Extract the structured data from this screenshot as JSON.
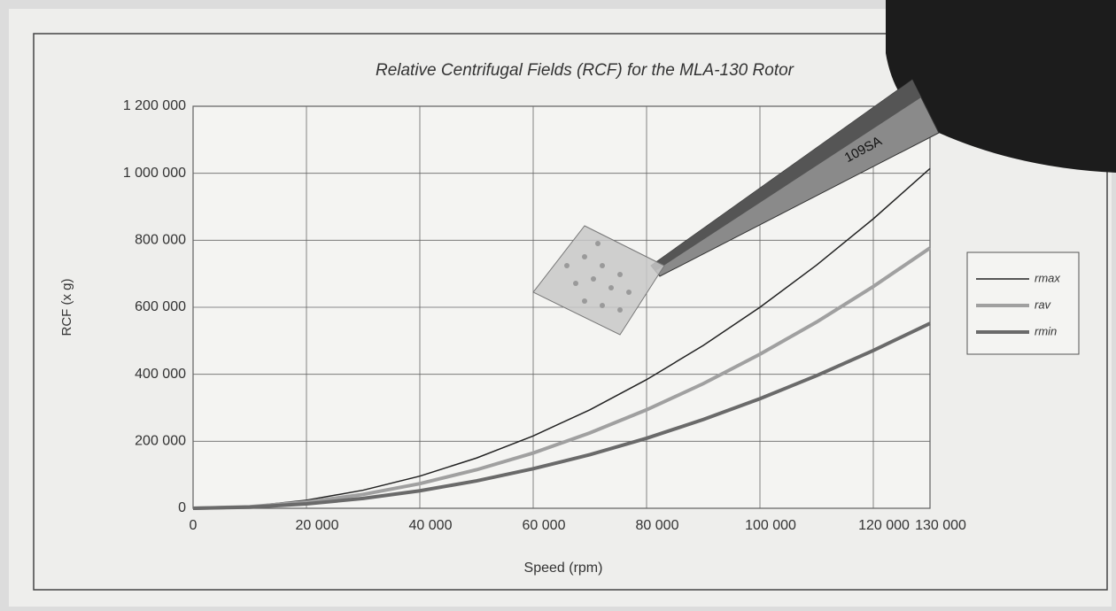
{
  "chart_data": {
    "type": "line",
    "title": "Relative Centrifugal Fields (RCF) for the MLA-130 Rotor",
    "x_label": "Speed (rpm)",
    "y_label": "RCF (x g)",
    "x": [
      0,
      10000,
      20000,
      30000,
      40000,
      50000,
      60000,
      70000,
      80000,
      90000,
      100000,
      110000,
      120000,
      130000
    ],
    "series": [
      {
        "name": "rmax",
        "color": "#222222",
        "width": 1.5,
        "values": [
          0,
          6000,
          24000,
          54000,
          96000,
          150000,
          216000,
          294000,
          384000,
          486000,
          600000,
          726000,
          864000,
          1014000
        ]
      },
      {
        "name": "rav",
        "color": "#a0a0a0",
        "width": 4,
        "values": [
          0,
          4600,
          18400,
          41400,
          73500,
          115000,
          165000,
          225000,
          294000,
          372000,
          460000,
          556000,
          662000,
          777000
        ]
      },
      {
        "name": "rmin",
        "color": "#6a6a6a",
        "width": 4,
        "values": [
          0,
          3300,
          13100,
          29400,
          52300,
          81700,
          118000,
          160000,
          209000,
          265000,
          327000,
          396000,
          471000,
          552000
        ]
      }
    ],
    "xlim": [
      0,
      130000
    ],
    "ylim": [
      0,
      1200000
    ],
    "xticks": [
      0,
      {
        "value": 20000,
        "label": "20 000"
      },
      {
        "value": 40000,
        "label": "40 000"
      },
      {
        "value": 60000,
        "label": "60 000"
      },
      {
        "value": 80000,
        "label": "80 000"
      },
      {
        "value": 100000,
        "label": "100 000"
      },
      {
        "value": 120000,
        "label": "120 000"
      },
      {
        "value": 130000,
        "label": "130 000"
      }
    ],
    "yticks": [
      0,
      {
        "value": 200000,
        "label": "200 000"
      },
      {
        "value": 400000,
        "label": "400 000"
      },
      {
        "value": 600000,
        "label": "600 000"
      },
      {
        "value": 800000,
        "label": "800 000"
      },
      {
        "value": 1000000,
        "label": "1 000 000"
      },
      {
        "value": 1200000,
        "label": "1 200 000"
      }
    ],
    "grid": true,
    "legend": "right"
  },
  "photo_overlay": {
    "tweezers_label": "109SA"
  }
}
